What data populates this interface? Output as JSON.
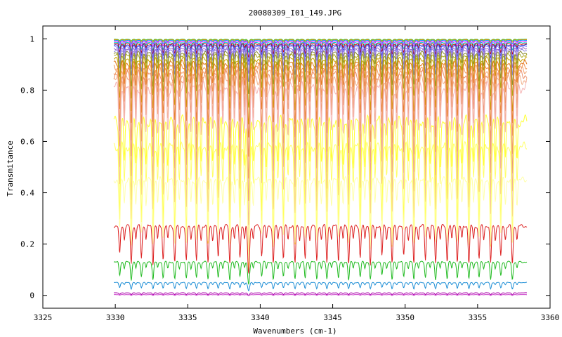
{
  "chart_data": {
    "type": "line",
    "title": "20080309_I01_149.JPG",
    "xlabel": "Wavenumbers (cm-1)",
    "ylabel": "Transmitance",
    "xlim": [
      3325,
      3360
    ],
    "ylim": [
      -0.05,
      1.05
    ],
    "xticks": [
      3325,
      3330,
      3335,
      3340,
      3345,
      3350,
      3355,
      3360
    ],
    "xtick_labels": [
      "3325",
      "3330",
      "3335",
      "3340",
      "3345",
      "3350",
      "3355",
      "3360"
    ],
    "yticks": [
      0,
      0.2,
      0.4,
      0.6,
      0.8,
      1
    ],
    "ytick_labels": [
      "0",
      "0.2",
      "0.4",
      "0.6",
      "0.8",
      "1"
    ],
    "grid": false,
    "legend": "none",
    "x_range_of_data": [
      3329.9,
      3358.4
    ],
    "absorption_lines_x": [
      3330.3,
      3331.1,
      3331.8,
      3332.6,
      3333.3,
      3334.1,
      3334.9,
      3335.6,
      3336.4,
      3337.1,
      3337.9,
      3338.6,
      3339.2,
      3340.1,
      3340.9,
      3341.6,
      3342.4,
      3343.1,
      3343.9,
      3344.6,
      3345.4,
      3346.1,
      3346.9,
      3347.6,
      3348.4,
      3349.1,
      3349.9,
      3350.6,
      3351.4,
      3352.1,
      3352.9,
      3353.6,
      3354.4,
      3355.1,
      3355.9,
      3356.6,
      3357.4
    ],
    "series": [
      {
        "baseline": 0.998,
        "depth": 0.006,
        "color": "#33cc33"
      },
      {
        "baseline": 0.996,
        "depth": 0.01,
        "color": "#ff8000"
      },
      {
        "baseline": 0.994,
        "depth": 0.015,
        "color": "#00aaff"
      },
      {
        "baseline": 0.99,
        "depth": 0.02,
        "color": "#ff00ff"
      },
      {
        "baseline": 0.985,
        "depth": 0.03,
        "color": "#00cccc"
      },
      {
        "baseline": 0.98,
        "depth": 0.04,
        "color": "#cc0000"
      },
      {
        "baseline": 0.975,
        "depth": 0.05,
        "color": "#3333cc"
      },
      {
        "baseline": 0.97,
        "depth": 0.06,
        "color": "#7f7fff"
      },
      {
        "baseline": 0.962,
        "depth": 0.08,
        "color": "#9966cc"
      },
      {
        "baseline": 0.955,
        "depth": 0.1,
        "color": "#8a7fd6"
      },
      {
        "baseline": 0.945,
        "depth": 0.13,
        "color": "#8c8c33"
      },
      {
        "baseline": 0.935,
        "depth": 0.16,
        "color": "#a6a61a"
      },
      {
        "baseline": 0.92,
        "depth": 0.2,
        "color": "#c9a200"
      },
      {
        "baseline": 0.905,
        "depth": 0.24,
        "color": "#e07a1f"
      },
      {
        "baseline": 0.89,
        "depth": 0.29,
        "color": "#f0904a"
      },
      {
        "baseline": 0.875,
        "depth": 0.34,
        "color": "#f2a06a"
      },
      {
        "baseline": 0.86,
        "depth": 0.4,
        "color": "#eb8f6b"
      },
      {
        "baseline": 0.84,
        "depth": 0.45,
        "color": "#f2b08a"
      },
      {
        "baseline": 0.81,
        "depth": 0.5,
        "color": "#f5b5b5"
      },
      {
        "baseline": 0.68,
        "depth": 0.48,
        "color": "#ffff33"
      },
      {
        "baseline": 0.58,
        "depth": 0.38,
        "color": "#ffff66"
      },
      {
        "baseline": 0.45,
        "depth": 0.26,
        "color": "#ffffaa"
      },
      {
        "baseline": 0.27,
        "depth": 0.15,
        "color": "#dd2222"
      },
      {
        "baseline": 0.13,
        "depth": 0.07,
        "color": "#22bb22"
      },
      {
        "baseline": 0.05,
        "depth": 0.025,
        "color": "#1f8fd6"
      },
      {
        "baseline": 0.01,
        "depth": 0.008,
        "color": "#aa00aa"
      },
      {
        "baseline": 0.003,
        "depth": 0.003,
        "color": "#cc44cc"
      }
    ]
  }
}
